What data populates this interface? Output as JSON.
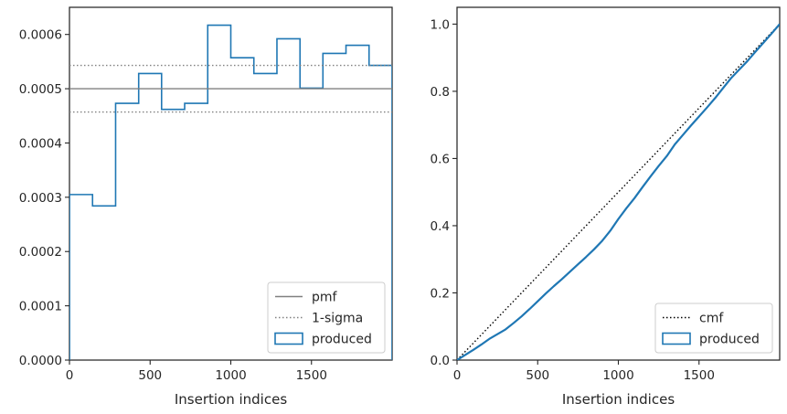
{
  "chart_data": [
    {
      "type": "histogram",
      "xlabel": "Insertion indices",
      "ylabel": "",
      "xlim": [
        0,
        2000
      ],
      "ylim": [
        0,
        0.00065
      ],
      "xticks": [
        0,
        500,
        1000,
        1500
      ],
      "xtick_labels": [
        "0",
        "500",
        "1000",
        "1500"
      ],
      "yticks": [
        0,
        0.0001,
        0.0002,
        0.0003,
        0.0004,
        0.0005,
        0.0006
      ],
      "ytick_labels": [
        "0.0000",
        "0.0001",
        "0.0002",
        "0.0003",
        "0.0004",
        "0.0005",
        "0.0006"
      ],
      "grid": false,
      "legend_position": "lower-right",
      "series": [
        {
          "name": "produced",
          "style": "step-histogram",
          "bin_edges": [
            0,
            143,
            286,
            429,
            571,
            714,
            857,
            1000,
            1143,
            1286,
            1429,
            1571,
            1714,
            1857,
            2000
          ],
          "values": [
            0.000305,
            0.000284,
            0.000473,
            0.000528,
            0.000462,
            0.000473,
            0.000617,
            0.000557,
            0.000528,
            0.000592,
            0.000501,
            0.000565,
            0.00058,
            0.000543
          ],
          "color": "#1f77b4"
        },
        {
          "name": "pmf",
          "style": "solid-hline",
          "y": 0.0005,
          "color": "#808080"
        },
        {
          "name": "1-sigma",
          "style": "dotted-hline",
          "y": [
            0.000457,
            0.000543
          ],
          "color": "#808080"
        }
      ],
      "legend": [
        "pmf",
        "1-sigma",
        "produced"
      ]
    },
    {
      "type": "line",
      "xlabel": "Insertion indices",
      "ylabel": "",
      "xlim": [
        0,
        2000
      ],
      "ylim": [
        0,
        1.05
      ],
      "xticks": [
        0,
        500,
        1000,
        1500
      ],
      "xtick_labels": [
        "0",
        "500",
        "1000",
        "1500"
      ],
      "yticks": [
        0,
        0.2,
        0.4,
        0.6,
        0.8,
        1.0
      ],
      "ytick_labels": [
        "0.0",
        "0.2",
        "0.4",
        "0.6",
        "0.8",
        "1.0"
      ],
      "grid": false,
      "legend_position": "lower-right",
      "series": [
        {
          "name": "cmf",
          "style": "dotted",
          "x": [
            0,
            2000
          ],
          "y": [
            0,
            1.0
          ],
          "color": "#000000"
        },
        {
          "name": "produced",
          "style": "solid",
          "color": "#1f77b4",
          "x": [
            0,
            50,
            100,
            150,
            200,
            250,
            300,
            350,
            400,
            450,
            500,
            550,
            600,
            650,
            700,
            750,
            800,
            850,
            900,
            950,
            1000,
            1050,
            1100,
            1150,
            1200,
            1250,
            1300,
            1350,
            1400,
            1450,
            1500,
            1550,
            1600,
            1650,
            1700,
            1750,
            1800,
            1850,
            1900,
            1950,
            2000
          ],
          "y": [
            0,
            0.015,
            0.03,
            0.046,
            0.063,
            0.077,
            0.091,
            0.11,
            0.13,
            0.152,
            0.175,
            0.198,
            0.22,
            0.241,
            0.263,
            0.285,
            0.307,
            0.33,
            0.355,
            0.385,
            0.42,
            0.452,
            0.482,
            0.515,
            0.547,
            0.578,
            0.607,
            0.642,
            0.67,
            0.698,
            0.725,
            0.752,
            0.78,
            0.81,
            0.84,
            0.865,
            0.89,
            0.918,
            0.945,
            0.972,
            1.0
          ]
        }
      ],
      "legend": [
        "cmf",
        "produced"
      ]
    }
  ]
}
